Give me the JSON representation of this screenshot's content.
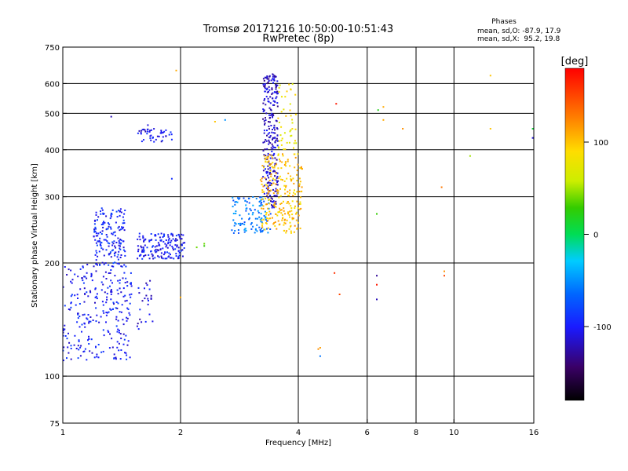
{
  "chart_data": {
    "type": "scatter",
    "title": "Tromsø 20171216 10:50:00-10:51:43",
    "subtitle": "RwPretec (8p)",
    "xlabel": "Frequency [MHz]",
    "ylabel": "Stationary phase Virtual Height [km]",
    "x_scale": "log",
    "y_scale": "log",
    "xlim": [
      1,
      16
    ],
    "ylim": [
      75,
      750
    ],
    "x_ticks": [
      1,
      2,
      4,
      6,
      8,
      10,
      16
    ],
    "y_ticks": [
      75,
      100,
      200,
      300,
      400,
      500,
      600,
      750
    ],
    "x_gridlines": [
      2,
      4,
      6,
      8,
      10,
      16
    ],
    "y_gridlines": [
      100,
      200,
      300,
      400,
      500,
      600
    ],
    "grid": true,
    "stats": {
      "header": "Phases",
      "line_o": "mean, sd,O: -87.9, 17.9",
      "line_x": "mean, sd,X:  95.2, 19.8"
    },
    "colorbar": {
      "label": "[deg]",
      "range": [
        -180,
        180
      ],
      "ticks": [
        100,
        0,
        -100
      ],
      "colormap": "rainbow"
    },
    "clusters": [
      {
        "name": "low-band blue cluster",
        "x_range": [
          1.0,
          1.5
        ],
        "y_range": [
          110,
          200
        ],
        "phase": -100,
        "count": 260
      },
      {
        "name": "low-band mid cluster",
        "x_range": [
          1.2,
          1.45
        ],
        "y_range": [
          195,
          280
        ],
        "phase": -95,
        "count": 170
      },
      {
        "name": "upper low-band patch",
        "x_range": [
          1.55,
          1.9
        ],
        "y_range": [
          420,
          455
        ],
        "phase": -105,
        "count": 45
      },
      {
        "name": "flat band 210-230 km",
        "x_range": [
          1.55,
          2.05
        ],
        "y_range": [
          205,
          240
        ],
        "phase": -100,
        "count": 160
      },
      {
        "name": "sparse low points",
        "x_range": [
          1.55,
          1.7
        ],
        "y_range": [
          130,
          180
        ],
        "phase": -110,
        "count": 25
      },
      {
        "name": "O-trace ramp",
        "x_range": [
          2.7,
          3.4
        ],
        "y_range": [
          240,
          300
        ],
        "phase": -60,
        "count": 110
      },
      {
        "name": "O-trace vertical column",
        "x_range": [
          3.25,
          3.55
        ],
        "y_range": [
          280,
          640
        ],
        "phase": -115,
        "count": 260
      },
      {
        "name": "X-trace cluster",
        "x_range": [
          3.2,
          4.1
        ],
        "y_range": [
          240,
          390
        ],
        "phase": 100,
        "count": 240
      },
      {
        "name": "X-trace upper column",
        "x_range": [
          3.55,
          3.95
        ],
        "y_range": [
          400,
          600
        ],
        "phase": 80,
        "count": 45
      }
    ],
    "scattered_points": [
      {
        "x": 1.33,
        "y": 490,
        "phase": -120
      },
      {
        "x": 1.65,
        "y": 465,
        "phase": -110
      },
      {
        "x": 1.9,
        "y": 335,
        "phase": -90
      },
      {
        "x": 1.95,
        "y": 650,
        "phase": 110
      },
      {
        "x": 2.45,
        "y": 475,
        "phase": 100
      },
      {
        "x": 2.2,
        "y": 220,
        "phase": 40
      },
      {
        "x": 2.3,
        "y": 225,
        "phase": 40
      },
      {
        "x": 2.0,
        "y": 162,
        "phase": 110
      },
      {
        "x": 2.6,
        "y": 480,
        "phase": -50
      },
      {
        "x": 2.3,
        "y": 222,
        "phase": 30
      },
      {
        "x": 4.5,
        "y": 118,
        "phase": 120
      },
      {
        "x": 4.55,
        "y": 119,
        "phase": 115
      },
      {
        "x": 4.55,
        "y": 113,
        "phase": -60
      },
      {
        "x": 5.0,
        "y": 530,
        "phase": 170
      },
      {
        "x": 4.95,
        "y": 188,
        "phase": 160
      },
      {
        "x": 5.1,
        "y": 165,
        "phase": 150
      },
      {
        "x": 6.35,
        "y": 185,
        "phase": -130
      },
      {
        "x": 6.35,
        "y": 175,
        "phase": 170
      },
      {
        "x": 6.35,
        "y": 160,
        "phase": -120
      },
      {
        "x": 6.35,
        "y": 270,
        "phase": 30
      },
      {
        "x": 6.4,
        "y": 510,
        "phase": 20
      },
      {
        "x": 6.6,
        "y": 480,
        "phase": 110
      },
      {
        "x": 6.6,
        "y": 520,
        "phase": 110
      },
      {
        "x": 7.4,
        "y": 455,
        "phase": 120
      },
      {
        "x": 9.3,
        "y": 318,
        "phase": 130
      },
      {
        "x": 9.45,
        "y": 190,
        "phase": 120
      },
      {
        "x": 9.45,
        "y": 185,
        "phase": 150
      },
      {
        "x": 11.0,
        "y": 385,
        "phase": 50
      },
      {
        "x": 12.4,
        "y": 455,
        "phase": 100
      },
      {
        "x": 12.4,
        "y": 630,
        "phase": 100
      },
      {
        "x": 15.9,
        "y": 455,
        "phase": 10
      },
      {
        "x": 15.9,
        "y": 430,
        "phase": -110
      }
    ]
  }
}
